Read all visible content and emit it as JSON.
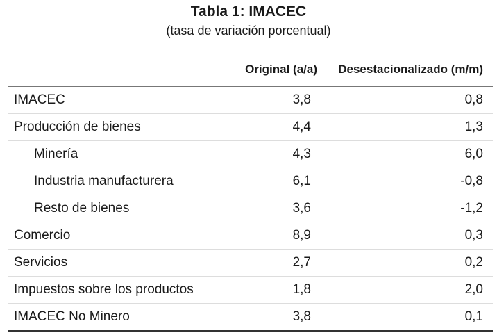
{
  "title": "Tabla 1:  IMACEC",
  "subtitle": "(tasa de variación porcentual)",
  "columns": {
    "original": "Original (a/a)",
    "desestacionalizado": "Desestacionalizado (m/m)"
  },
  "rows": [
    {
      "label": "IMACEC",
      "original": "3,8",
      "desestacionalizado": "0,8",
      "indent": false
    },
    {
      "label": "Producción de bienes",
      "original": "4,4",
      "desestacionalizado": "1,3",
      "indent": false
    },
    {
      "label": "Minería",
      "original": "4,3",
      "desestacionalizado": "6,0",
      "indent": true
    },
    {
      "label": "Industria manufacturera",
      "original": "6,1",
      "desestacionalizado": "-0,8",
      "indent": true
    },
    {
      "label": "Resto de bienes",
      "original": "3,6",
      "desestacionalizado": "-1,2",
      "indent": true
    },
    {
      "label": "Comercio",
      "original": "8,9",
      "desestacionalizado": "0,3",
      "indent": false
    },
    {
      "label": "Servicios",
      "original": "2,7",
      "desestacionalizado": "0,2",
      "indent": false
    },
    {
      "label": "Impuestos sobre los productos",
      "original": "1,8",
      "desestacionalizado": "2,0",
      "indent": false
    },
    {
      "label": "IMACEC No Minero",
      "original": "3,8",
      "desestacionalizado": "0,1",
      "indent": false
    }
  ]
}
